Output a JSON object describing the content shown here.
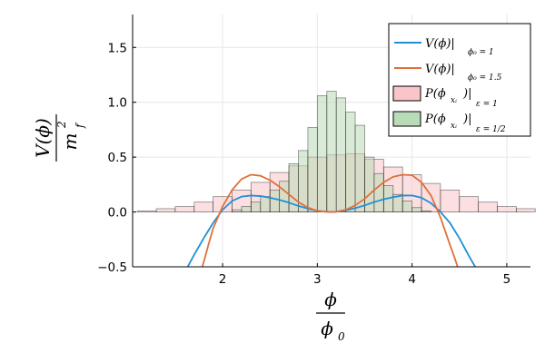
{
  "chart_data": {
    "type": "line+histogram",
    "xlim": [
      1.05,
      5.25
    ],
    "ylim": [
      -0.5,
      1.8
    ],
    "xticks": [
      2,
      3,
      4,
      5
    ],
    "xtick_labels": [
      "2",
      "3",
      "4",
      "5"
    ],
    "yticks": [
      -0.5,
      0.0,
      0.5,
      1.0,
      1.5
    ],
    "ytick_labels": [
      "−0.5",
      "0.0",
      "0.5",
      "1.0",
      "1.5"
    ],
    "grid": true,
    "legend_position": "top-right",
    "ylabel": {
      "numerator": "V(ϕ)",
      "denominator_base": "m",
      "denominator_sup": "2",
      "denominator_sub": "f"
    },
    "xlabel": {
      "numerator": "ϕ",
      "denominator_base": "ϕ",
      "denominator_sub": "0"
    },
    "legend": [
      {
        "kind": "line",
        "color": "#1f8fd6",
        "main": "V(ϕ)|",
        "sub": "ϕ₀ = 1"
      },
      {
        "kind": "line",
        "color": "#e0703a",
        "main": "V(ϕ)|",
        "sub": "ϕ₀ = 1.5"
      },
      {
        "kind": "patch",
        "color": "#f9c5c8",
        "main": "P(ϕ",
        "mid": "xᵢ",
        "tail": ")|",
        "sub": "ε = 1"
      },
      {
        "kind": "patch",
        "color": "#b9dbb7",
        "main": "P(ϕ",
        "mid": "xᵢ",
        "tail": ")|",
        "sub": "ε = 1/2"
      }
    ],
    "series": [
      {
        "type": "line",
        "legend_index": 0,
        "color": "#1f8fd6",
        "x": [
          1.6,
          1.7,
          1.8,
          1.9,
          2.0,
          2.1,
          2.2,
          2.3,
          2.4,
          2.5,
          2.6,
          2.7,
          2.8,
          2.9,
          3.0,
          3.1,
          3.1416,
          3.2,
          3.3,
          3.4,
          3.5,
          3.6,
          3.7,
          3.8,
          3.9,
          4.0,
          4.1,
          4.2,
          4.3,
          4.4,
          4.5,
          4.6,
          4.7
        ],
        "y": [
          -0.55,
          -0.39,
          -0.24,
          -0.1,
          0.02,
          0.1,
          0.14,
          0.15,
          0.145,
          0.13,
          0.11,
          0.085,
          0.055,
          0.03,
          0.01,
          0.002,
          0.0,
          0.002,
          0.015,
          0.035,
          0.06,
          0.09,
          0.115,
          0.135,
          0.15,
          0.15,
          0.13,
          0.08,
          0.0,
          -0.1,
          -0.24,
          -0.4,
          -0.55
        ]
      },
      {
        "type": "line",
        "legend_index": 1,
        "color": "#e0703a",
        "x": [
          1.78,
          1.85,
          1.9,
          2.0,
          2.1,
          2.2,
          2.3,
          2.4,
          2.5,
          2.6,
          2.7,
          2.8,
          2.9,
          3.0,
          3.1,
          3.1416,
          3.2,
          3.3,
          3.4,
          3.5,
          3.6,
          3.7,
          3.8,
          3.9,
          4.0,
          4.1,
          4.2,
          4.3,
          4.4,
          4.45,
          4.5
        ],
        "y": [
          -0.52,
          -0.3,
          -0.15,
          0.05,
          0.2,
          0.3,
          0.34,
          0.33,
          0.29,
          0.23,
          0.16,
          0.09,
          0.04,
          0.01,
          0.001,
          0.0,
          0.002,
          0.02,
          0.06,
          0.12,
          0.2,
          0.27,
          0.32,
          0.34,
          0.335,
          0.27,
          0.15,
          -0.05,
          -0.3,
          -0.42,
          -0.55
        ]
      },
      {
        "type": "histogram",
        "legend_index": 2,
        "color": "#f9c5c8",
        "bin_edges": [
          1.1,
          1.3,
          1.5,
          1.7,
          1.9,
          2.1,
          2.3,
          2.5,
          2.7,
          2.9,
          3.1,
          3.3,
          3.5,
          3.7,
          3.9,
          4.1,
          4.3,
          4.5,
          4.7,
          4.9,
          5.1,
          5.3
        ],
        "values": [
          0.01,
          0.03,
          0.05,
          0.09,
          0.14,
          0.2,
          0.27,
          0.36,
          0.42,
          0.5,
          0.52,
          0.53,
          0.48,
          0.41,
          0.34,
          0.26,
          0.2,
          0.14,
          0.09,
          0.05,
          0.03
        ]
      },
      {
        "type": "histogram",
        "legend_index": 3,
        "color": "#b9dbb7",
        "bin_edges": [
          2.1,
          2.2,
          2.3,
          2.4,
          2.5,
          2.6,
          2.7,
          2.8,
          2.9,
          3.0,
          3.1,
          3.2,
          3.3,
          3.4,
          3.5,
          3.6,
          3.7,
          3.8,
          3.9,
          4.0,
          4.1,
          4.2
        ],
        "values": [
          0.02,
          0.05,
          0.09,
          0.14,
          0.2,
          0.28,
          0.44,
          0.56,
          0.77,
          1.06,
          1.1,
          1.04,
          0.91,
          0.79,
          0.5,
          0.35,
          0.24,
          0.16,
          0.1,
          0.04,
          0.01
        ]
      }
    ]
  }
}
